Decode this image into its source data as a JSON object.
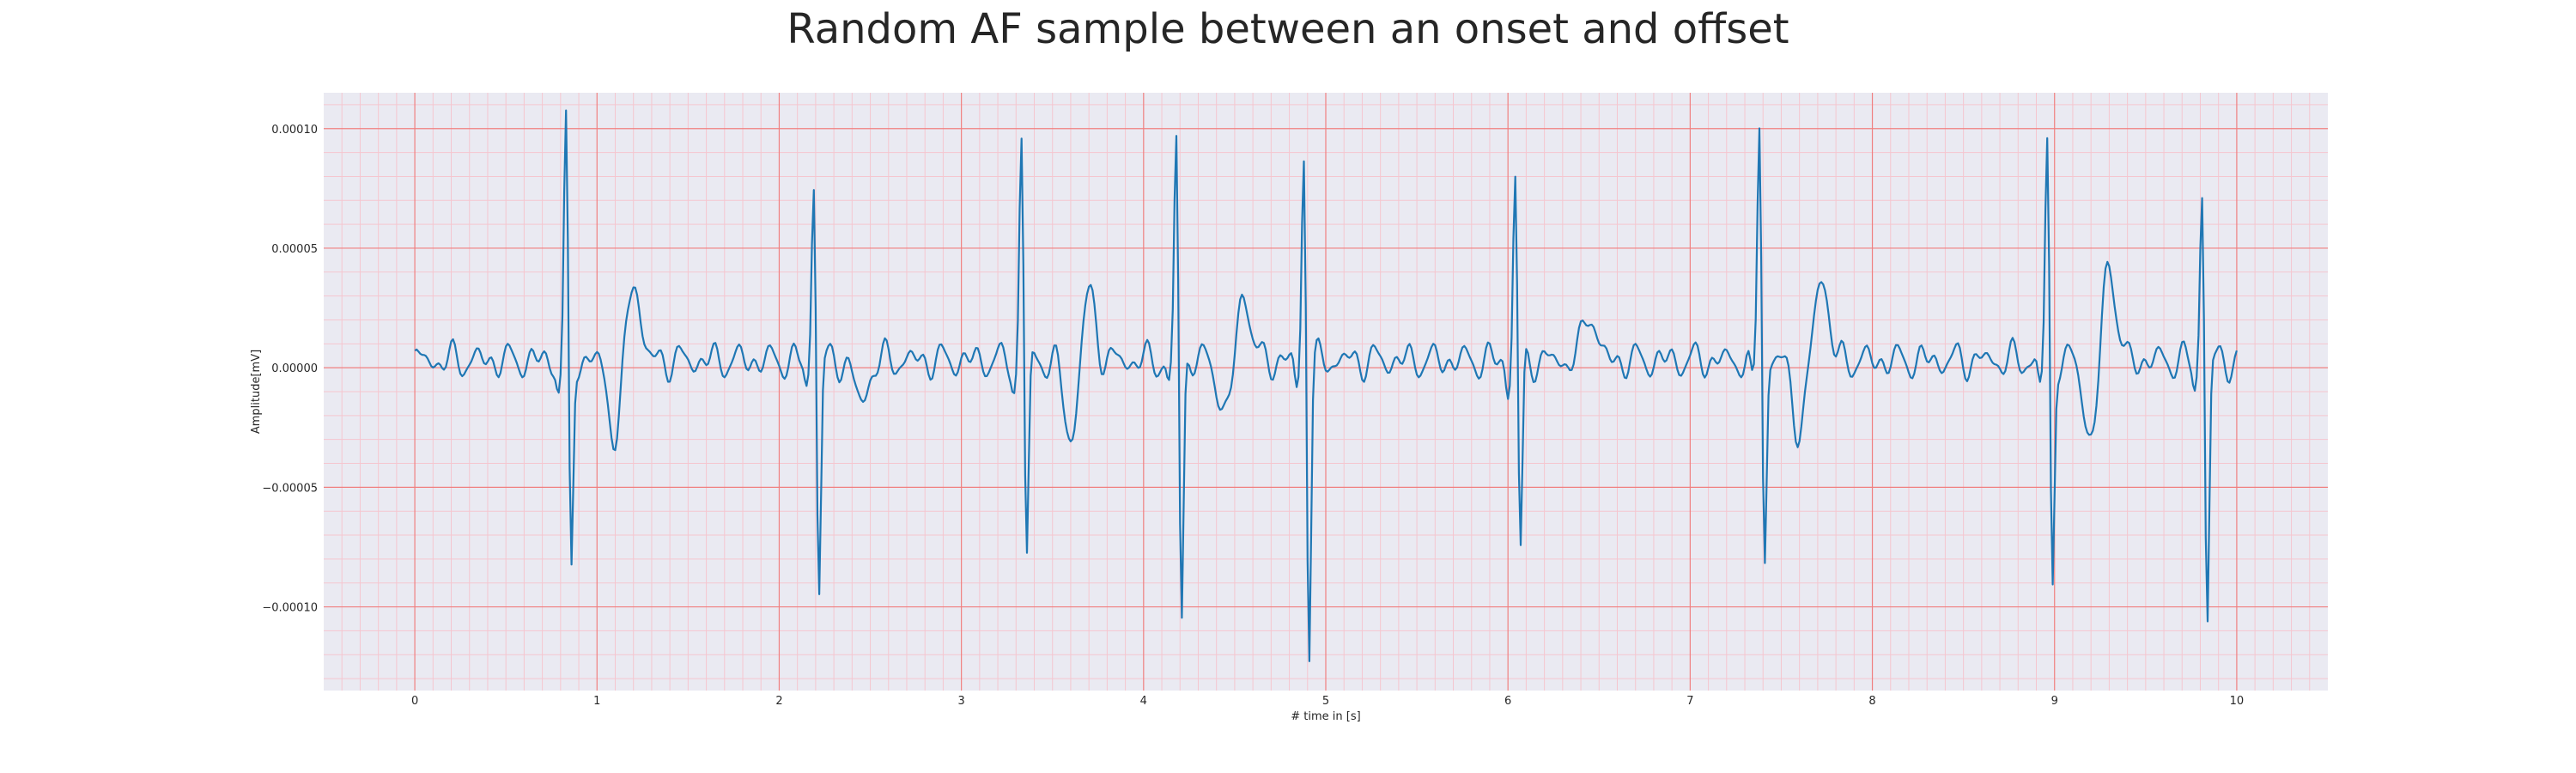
{
  "chart_data": {
    "type": "line",
    "title": "Random AF sample between an onset and offset",
    "xlabel": "# time in [s]",
    "ylabel": "Amplitude[mV]",
    "xlim": [
      -0.5,
      10.5
    ],
    "ylim": [
      -0.000135,
      0.000115
    ],
    "x_ticks": [
      0,
      1,
      2,
      3,
      4,
      5,
      6,
      7,
      8,
      9,
      10
    ],
    "y_ticks": [
      0.0001,
      5e-05,
      0.0,
      -5e-05,
      -0.0001
    ],
    "y_tick_labels": [
      "0.00010",
      "0.00005",
      "0.00000",
      "−0.00005",
      "−0.00010"
    ],
    "grid": "major and minor",
    "colors": {
      "line": "#1f77b4",
      "background": "#eaeaf2",
      "major_grid": "#f08080",
      "minor_grid": "#f5c6cf"
    },
    "sampling_rate_hz": 100,
    "beats": [
      {
        "t": 0.83,
        "peak": 0.000102,
        "trough": -9.3e-05
      },
      {
        "t": 2.19,
        "peak": 8e-05,
        "trough": -0.0001
      },
      {
        "t": 3.33,
        "peak": 9.8e-05,
        "trough": -8.6e-05
      },
      {
        "t": 4.18,
        "peak": 9.7e-05,
        "trough": -0.00011
      },
      {
        "t": 4.88,
        "peak": 9.1e-05,
        "trough": -0.000124
      },
      {
        "t": 6.04,
        "peak": 8e-05,
        "trough": -8.4e-05
      },
      {
        "t": 7.38,
        "peak": 0.000104,
        "trough": -8.7e-05
      },
      {
        "t": 8.96,
        "peak": 9.5e-05,
        "trough": -9.8e-05
      },
      {
        "t": 9.81,
        "peak": 7.6e-05,
        "trough": -0.000112
      }
    ],
    "slow_waves": [
      {
        "t": 1.1,
        "value": -3.2e-05
      },
      {
        "t": 1.2,
        "value": 3.5e-05
      },
      {
        "t": 2.45,
        "value": -1.8e-05
      },
      {
        "t": 3.6,
        "value": -3.3e-05
      },
      {
        "t": 3.7,
        "value": 2.8e-05
      },
      {
        "t": 4.45,
        "value": -2.3e-05
      },
      {
        "t": 4.55,
        "value": 2.9e-05
      },
      {
        "t": 6.45,
        "value": 2.1e-05
      },
      {
        "t": 7.6,
        "value": -2.9e-05
      },
      {
        "t": 7.72,
        "value": 3.7e-05
      },
      {
        "t": 9.2,
        "value": -3.4e-05
      },
      {
        "t": 9.3,
        "value": 4.2e-05
      }
    ]
  }
}
